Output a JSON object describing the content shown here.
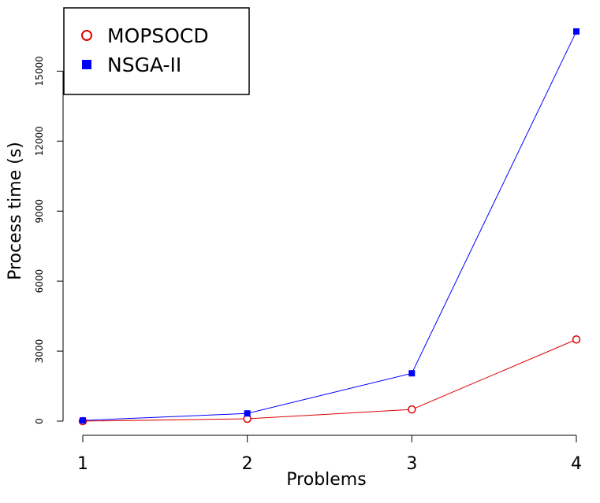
{
  "chart_data": {
    "type": "line",
    "title": "",
    "xlabel": "Problems",
    "ylabel": "Process time (s)",
    "x": [
      1,
      2,
      3,
      4
    ],
    "x_ticks": [
      "1",
      "2",
      "3",
      "4"
    ],
    "y_ticks": [
      "0",
      "3000",
      "6000",
      "9000",
      "12000",
      "15000"
    ],
    "y_tick_values": [
      0,
      3000,
      6000,
      9000,
      12000,
      15000
    ],
    "xlim": [
      0.98,
      4.0
    ],
    "ylim": [
      0,
      16800
    ],
    "grid": false,
    "legend_position": "top-left",
    "series": [
      {
        "name": "MOPSOCD",
        "values": [
          0,
          100,
          500,
          3500
        ],
        "color": "#dd0000",
        "marker": "open-circle"
      },
      {
        "name": "NSGA-II",
        "values": [
          30,
          330,
          2050,
          16700
        ],
        "color": "#0000ff",
        "marker": "filled-square"
      }
    ]
  }
}
